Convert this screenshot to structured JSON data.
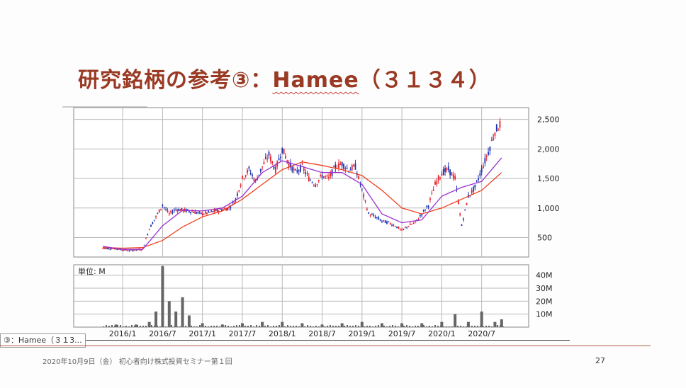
{
  "slide": {
    "title_prefix": "研究銘柄の参考③：",
    "title_company": "Hamee",
    "title_code": "（３１３４）",
    "footer": "2020年10月9日（金）  初心者向け株式投資セミナー第１回",
    "page_number": "27",
    "tooltip": "③：Hamee（３１3..."
  },
  "colors": {
    "title": "#9a3a24",
    "up_candle": "#e8202a",
    "down_candle": "#1a2fb0",
    "ma_short": "#9b30d0",
    "ma_long": "#ee4020",
    "volume": "#666666",
    "grid": "#b8b8b8"
  },
  "chart_data": [
    {
      "type": "candlestick",
      "x_tick_labels": [
        "2016/1",
        "2016/7",
        "2017/1",
        "2017/7",
        "2018/1",
        "2018/7",
        "2019/1",
        "2019/7",
        "2020/1",
        "2020/7"
      ],
      "y_tick_labels": [
        "2,500",
        "2,000",
        "1,500",
        "1,000",
        "500"
      ],
      "y_ticks": [
        2500,
        2000,
        1500,
        1000,
        500
      ],
      "ylim": [
        170,
        2700
      ],
      "grid": true,
      "series": [
        {
          "kind": "close",
          "x": [
            "2015/10",
            "2015/12",
            "2016/2",
            "2016/4",
            "2016/5",
            "2016/6",
            "2016/7",
            "2016/8",
            "2016/9",
            "2016/11",
            "2017/1",
            "2017/3",
            "2017/5",
            "2017/6",
            "2017/7",
            "2017/8",
            "2017/9",
            "2017/10",
            "2017/11",
            "2017/12",
            "2018/1",
            "2018/2",
            "2018/3",
            "2018/4",
            "2018/5",
            "2018/6",
            "2018/7",
            "2018/8",
            "2018/9",
            "2018/10",
            "2018/11",
            "2018/12",
            "2019/1",
            "2019/2",
            "2019/3",
            "2019/4",
            "2019/5",
            "2019/6",
            "2019/7",
            "2019/8",
            "2019/9",
            "2019/10",
            "2019/11",
            "2019/12",
            "2020/1",
            "2020/2",
            "2020/3",
            "2020/4",
            "2020/5",
            "2020/6",
            "2020/7",
            "2020/8",
            "2020/9",
            "2020/10"
          ],
          "values": [
            320,
            310,
            280,
            300,
            650,
            850,
            1050,
            900,
            980,
            950,
            900,
            950,
            1000,
            1150,
            1500,
            1650,
            1450,
            1700,
            1900,
            1650,
            2000,
            1750,
            1600,
            1700,
            1500,
            1400,
            1550,
            1500,
            1700,
            1750,
            1650,
            1700,
            1300,
            900,
            850,
            780,
            750,
            700,
            620,
            700,
            750,
            900,
            1050,
            1400,
            1600,
            1650,
            1500,
            700,
            1200,
            1350,
            1650,
            1950,
            2300,
            2450
          ]
        },
        {
          "kind": "moving-average-short",
          "x": [
            "2015/10",
            "2016/1",
            "2016/4",
            "2016/7",
            "2016/10",
            "2017/1",
            "2017/4",
            "2017/7",
            "2017/10",
            "2018/1",
            "2018/4",
            "2018/7",
            "2018/10",
            "2019/1",
            "2019/4",
            "2019/7",
            "2019/10",
            "2020/1",
            "2020/4",
            "2020/7",
            "2020/10"
          ],
          "values": [
            350,
            300,
            300,
            700,
            960,
            950,
            1000,
            1200,
            1600,
            1800,
            1700,
            1600,
            1600,
            1400,
            900,
            750,
            800,
            1200,
            1350,
            1450,
            1850
          ]
        },
        {
          "kind": "moving-average-long",
          "x": [
            "2015/10",
            "2016/1",
            "2016/4",
            "2016/7",
            "2016/10",
            "2017/1",
            "2017/4",
            "2017/7",
            "2017/10",
            "2018/1",
            "2018/4",
            "2018/7",
            "2018/10",
            "2019/1",
            "2019/4",
            "2019/7",
            "2019/10",
            "2020/1",
            "2020/4",
            "2020/7",
            "2020/10"
          ],
          "values": [
            330,
            320,
            330,
            450,
            680,
            850,
            950,
            1150,
            1400,
            1650,
            1780,
            1720,
            1650,
            1550,
            1300,
            1000,
            900,
            1000,
            1150,
            1300,
            1600
          ]
        }
      ]
    },
    {
      "type": "bar",
      "unit_label": "単位: M",
      "y_tick_labels": [
        "40M",
        "30M",
        "20M",
        "10M"
      ],
      "y_ticks": [
        40,
        30,
        20,
        10
      ],
      "ylim": [
        0,
        48
      ],
      "x": [
        "2015/12",
        "2016/3",
        "2016/5",
        "2016/6",
        "2016/7",
        "2016/8",
        "2016/9",
        "2016/10",
        "2016/11",
        "2017/1",
        "2017/4",
        "2017/7",
        "2017/10",
        "2018/1",
        "2018/4",
        "2018/7",
        "2018/10",
        "2019/1",
        "2019/4",
        "2019/7",
        "2019/10",
        "2020/1",
        "2020/3",
        "2020/5",
        "2020/7",
        "2020/9",
        "2020/10"
      ],
      "values": [
        2,
        2,
        4,
        12,
        47,
        20,
        12,
        23,
        9,
        3,
        2,
        3,
        4,
        4,
        3,
        2,
        3,
        4,
        3,
        3,
        3,
        4,
        10,
        4,
        12,
        4,
        6
      ]
    }
  ]
}
